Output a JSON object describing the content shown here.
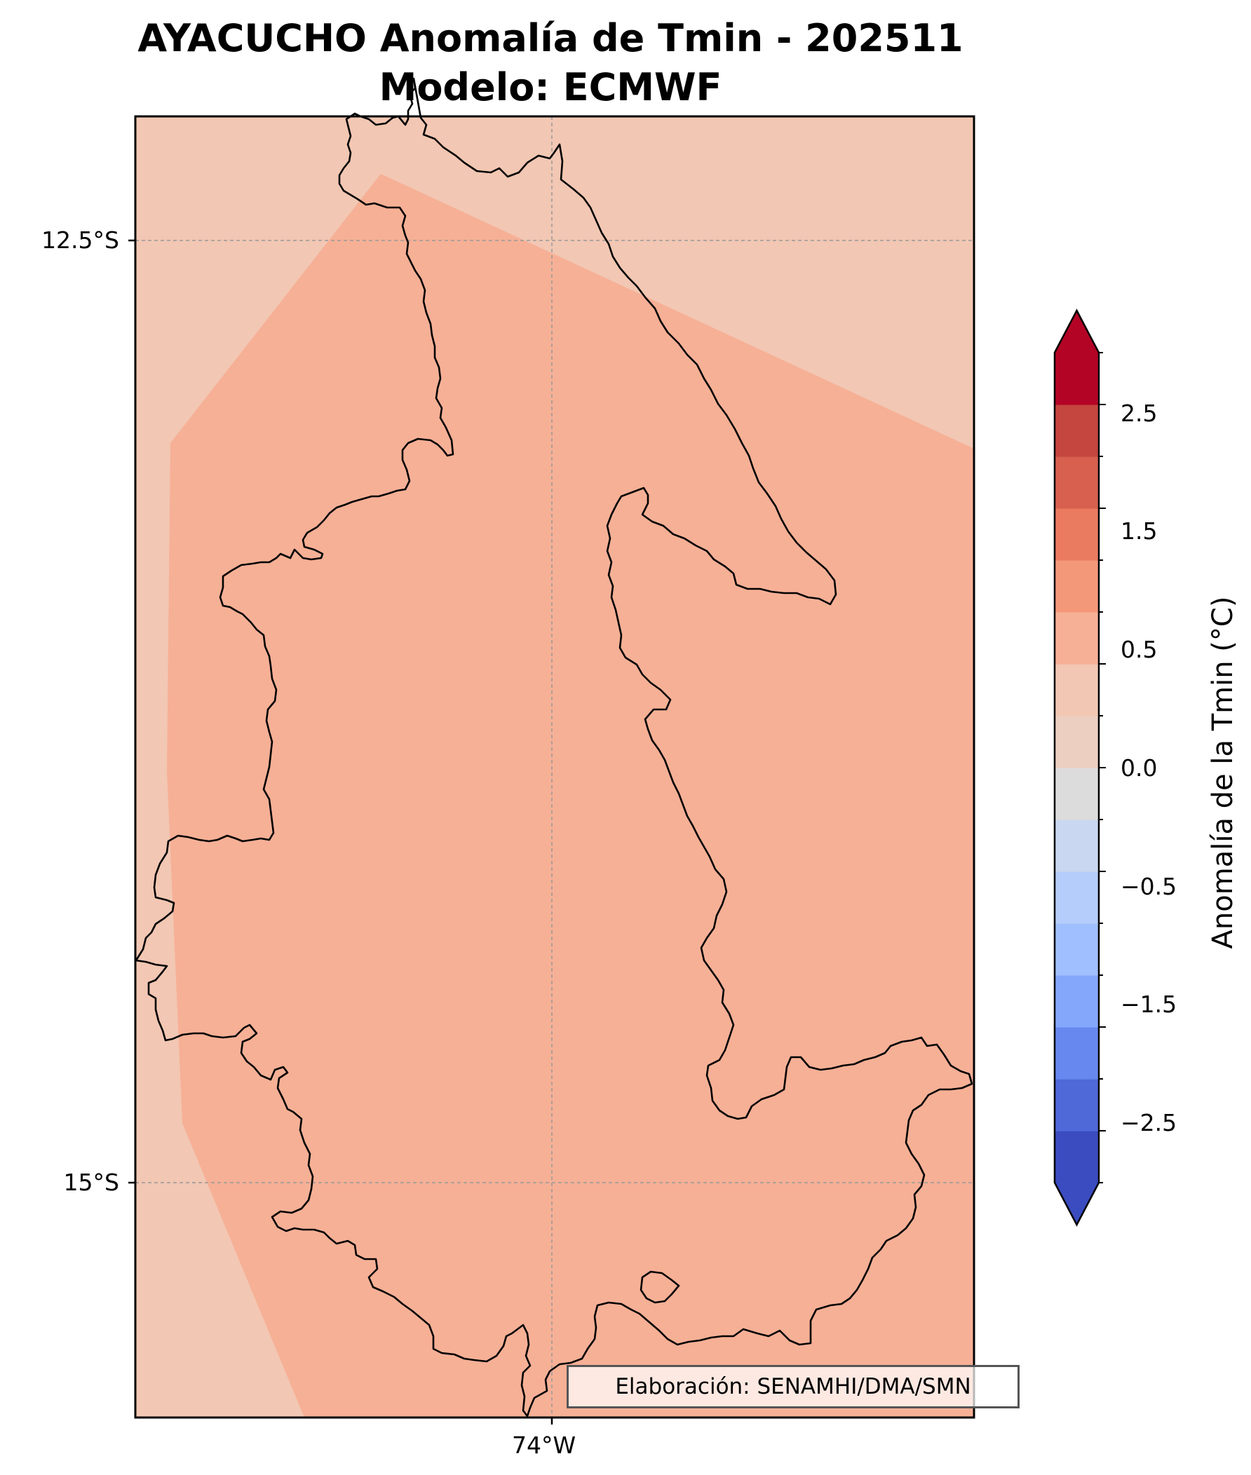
{
  "title": {
    "line1": "AYACUCHO Anomalía de Tmin - 202511",
    "line2": "Modelo: ECMWF"
  },
  "map": {
    "region": "AYACUCHO",
    "lat_ticks": [
      "12.5°S",
      "15°S"
    ],
    "lon_ticks": [
      "74°W"
    ],
    "gridlines": true,
    "background_class_color": "#f2c7b3",
    "main_class_color": "#f6b096",
    "boundary_color": "#000000"
  },
  "colorbar": {
    "label": "Anomalía de la Tmin (°C)",
    "ticks": [
      "−2.5",
      "−1.5",
      "−0.5",
      "0.0",
      "0.5",
      "1.5",
      "2.5"
    ],
    "boundaries": [
      -3,
      -2.5,
      -2,
      -1.5,
      -1,
      -0.75,
      -0.5,
      -0.25,
      0,
      0.25,
      0.5,
      0.75,
      1,
      1.5,
      2,
      2.5,
      3
    ],
    "colors": [
      "#3b4cc0",
      "#4f69d9",
      "#6788ee",
      "#84a7fc",
      "#9fbfff",
      "#b5cdfa",
      "#c9d7f0",
      "#dddcdc",
      "#eccfc1",
      "#f2c7b3",
      "#f6b096",
      "#f4987a",
      "#ea7b60",
      "#d8604e",
      "#c5453f",
      "#b40426"
    ],
    "under_color": "#3b4cc0",
    "over_color": "#b40426",
    "extend": "both"
  },
  "credit": "Elaboración: SENAMHI/DMA/SMN"
}
